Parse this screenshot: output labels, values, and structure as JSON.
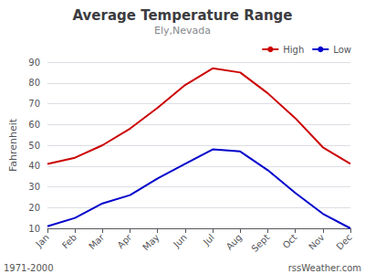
{
  "chart_data": {
    "type": "line",
    "title": "Average Temperature Range",
    "subtitle": "Ely,Nevada",
    "ylabel": "Fahrenheit",
    "categories": [
      "Jan",
      "Feb",
      "Mar",
      "Apr",
      "May",
      "Jun",
      "Jul",
      "Aug",
      "Sept",
      "Oct",
      "Nov",
      "Dec"
    ],
    "series": [
      {
        "name": "High",
        "color": "#cc0000",
        "values": [
          41,
          44,
          50,
          58,
          68,
          79,
          87,
          85,
          75,
          63,
          49,
          41
        ]
      },
      {
        "name": "Low",
        "color": "#0000cc",
        "values": [
          11,
          15,
          22,
          26,
          34,
          41,
          48,
          47,
          38,
          27,
          17,
          10
        ]
      }
    ],
    "ylim": [
      10,
      90
    ],
    "yticks": [
      10,
      20,
      30,
      40,
      50,
      60,
      70,
      80,
      90
    ],
    "grid": true,
    "legend": "upper right",
    "annotations": [
      "1971-2000",
      "rssWeather.com"
    ]
  }
}
